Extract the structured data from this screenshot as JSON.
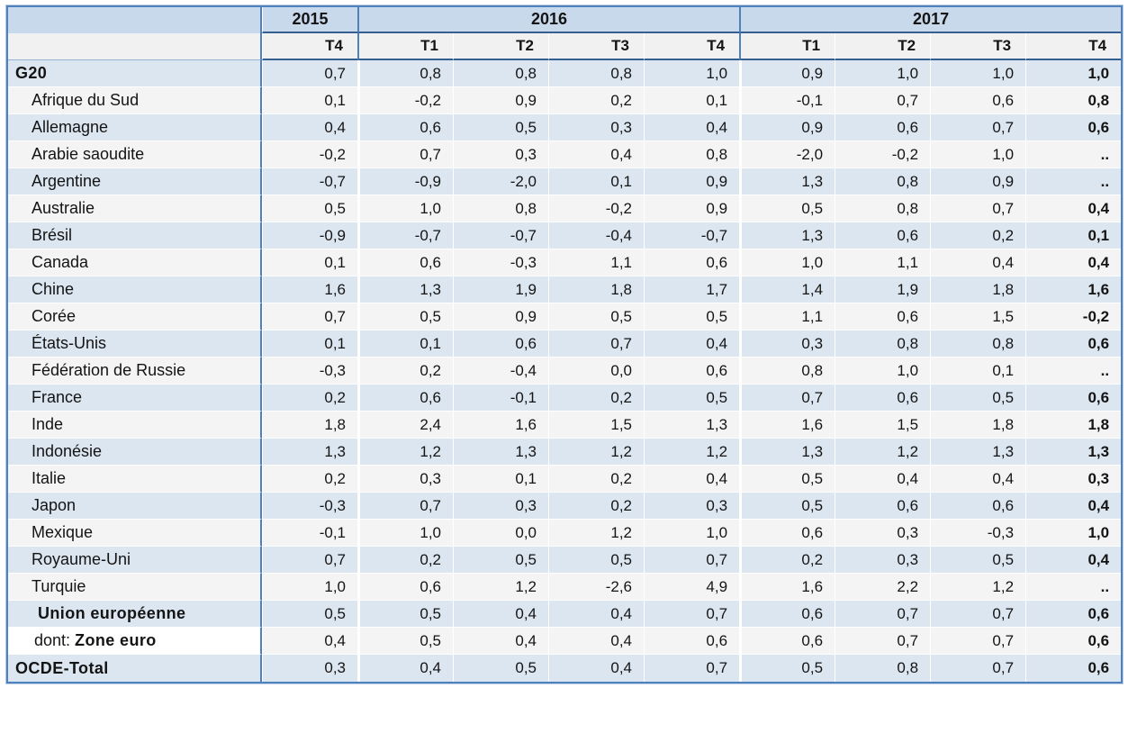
{
  "colors": {
    "border_blue": "#4f81bd",
    "header_underline": "#365f91",
    "year_band": "#c9d9ec",
    "quarter_band": "#f1f1f1",
    "stripe_blue": "#dce6f1",
    "stripe_white": "#f4f4f4"
  },
  "chart_data": {
    "type": "table",
    "missing_value_symbol": "..",
    "column_groups": [
      {
        "label": "2015",
        "span": 1
      },
      {
        "label": "2016",
        "span": 4
      },
      {
        "label": "2017",
        "span": 4
      }
    ],
    "columns": [
      "T4",
      "T1",
      "T2",
      "T3",
      "T4",
      "T1",
      "T2",
      "T3",
      "T4"
    ],
    "rows": [
      {
        "label": "G20",
        "style": "total",
        "values": [
          "0,7",
          "0,8",
          "0,8",
          "0,8",
          "1,0",
          "0,9",
          "1,0",
          "1,0",
          "1,0"
        ]
      },
      {
        "label": "Afrique du Sud",
        "style": "country",
        "values": [
          "0,1",
          "-0,2",
          "0,9",
          "0,2",
          "0,1",
          "-0,1",
          "0,7",
          "0,6",
          "0,8"
        ]
      },
      {
        "label": "Allemagne",
        "style": "country",
        "values": [
          "0,4",
          "0,6",
          "0,5",
          "0,3",
          "0,4",
          "0,9",
          "0,6",
          "0,7",
          "0,6"
        ]
      },
      {
        "label": "Arabie saoudite",
        "style": "country",
        "values": [
          "-0,2",
          "0,7",
          "0,3",
          "0,4",
          "0,8",
          "-2,0",
          "-0,2",
          "1,0",
          ".."
        ]
      },
      {
        "label": "Argentine",
        "style": "country",
        "values": [
          "-0,7",
          "-0,9",
          "-2,0",
          "0,1",
          "0,9",
          "1,3",
          "0,8",
          "0,9",
          ".."
        ]
      },
      {
        "label": "Australie",
        "style": "country",
        "values": [
          "0,5",
          "1,0",
          "0,8",
          "-0,2",
          "0,9",
          "0,5",
          "0,8",
          "0,7",
          "0,4"
        ]
      },
      {
        "label": "Brésil",
        "style": "country",
        "values": [
          "-0,9",
          "-0,7",
          "-0,7",
          "-0,4",
          "-0,7",
          "1,3",
          "0,6",
          "0,2",
          "0,1"
        ]
      },
      {
        "label": "Canada",
        "style": "country",
        "values": [
          "0,1",
          "0,6",
          "-0,3",
          "1,1",
          "0,6",
          "1,0",
          "1,1",
          "0,4",
          "0,4"
        ]
      },
      {
        "label": "Chine",
        "style": "country",
        "values": [
          "1,6",
          "1,3",
          "1,9",
          "1,8",
          "1,7",
          "1,4",
          "1,9",
          "1,8",
          "1,6"
        ]
      },
      {
        "label": "Corée",
        "style": "country",
        "values": [
          "0,7",
          "0,5",
          "0,9",
          "0,5",
          "0,5",
          "1,1",
          "0,6",
          "1,5",
          "-0,2"
        ]
      },
      {
        "label": "États-Unis",
        "style": "country",
        "values": [
          "0,1",
          "0,1",
          "0,6",
          "0,7",
          "0,4",
          "0,3",
          "0,8",
          "0,8",
          "0,6"
        ]
      },
      {
        "label": "Fédération de Russie",
        "style": "country",
        "values": [
          "-0,3",
          "0,2",
          "-0,4",
          "0,0",
          "0,6",
          "0,8",
          "1,0",
          "0,1",
          ".."
        ]
      },
      {
        "label": "France",
        "style": "country",
        "values": [
          "0,2",
          "0,6",
          "-0,1",
          "0,2",
          "0,5",
          "0,7",
          "0,6",
          "0,5",
          "0,6"
        ]
      },
      {
        "label": "Inde",
        "style": "country",
        "values": [
          "1,8",
          "2,4",
          "1,6",
          "1,5",
          "1,3",
          "1,6",
          "1,5",
          "1,8",
          "1,8"
        ]
      },
      {
        "label": "Indonésie",
        "style": "country",
        "values": [
          "1,3",
          "1,2",
          "1,3",
          "1,2",
          "1,2",
          "1,3",
          "1,2",
          "1,3",
          "1,3"
        ]
      },
      {
        "label": "Italie",
        "style": "country",
        "values": [
          "0,2",
          "0,3",
          "0,1",
          "0,2",
          "0,4",
          "0,5",
          "0,4",
          "0,4",
          "0,3"
        ]
      },
      {
        "label": "Japon",
        "style": "country",
        "values": [
          "-0,3",
          "0,7",
          "0,3",
          "0,2",
          "0,3",
          "0,5",
          "0,6",
          "0,6",
          "0,4"
        ]
      },
      {
        "label": "Mexique",
        "style": "country",
        "values": [
          "-0,1",
          "1,0",
          "0,0",
          "1,2",
          "1,0",
          "0,6",
          "0,3",
          "-0,3",
          "1,0"
        ]
      },
      {
        "label": "Royaume-Uni",
        "style": "country",
        "values": [
          "0,7",
          "0,2",
          "0,5",
          "0,5",
          "0,7",
          "0,2",
          "0,3",
          "0,5",
          "0,4"
        ]
      },
      {
        "label": "Turquie",
        "style": "country",
        "values": [
          "1,0",
          "0,6",
          "1,2",
          "-2,6",
          "4,9",
          "1,6",
          "2,2",
          "1,2",
          ".."
        ]
      },
      {
        "label": "Union européenne",
        "style": "bold-indent",
        "values": [
          "0,5",
          "0,5",
          "0,4",
          "0,4",
          "0,7",
          "0,6",
          "0,7",
          "0,7",
          "0,6"
        ]
      },
      {
        "prefix": "dont: ",
        "label": "Zone euro",
        "style": "dont",
        "values": [
          "0,4",
          "0,5",
          "0,4",
          "0,4",
          "0,6",
          "0,6",
          "0,7",
          "0,7",
          "0,6"
        ]
      },
      {
        "label": "OCDE-Total",
        "style": "total",
        "values": [
          "0,3",
          "0,4",
          "0,5",
          "0,4",
          "0,7",
          "0,5",
          "0,8",
          "0,7",
          "0,6"
        ]
      }
    ]
  }
}
